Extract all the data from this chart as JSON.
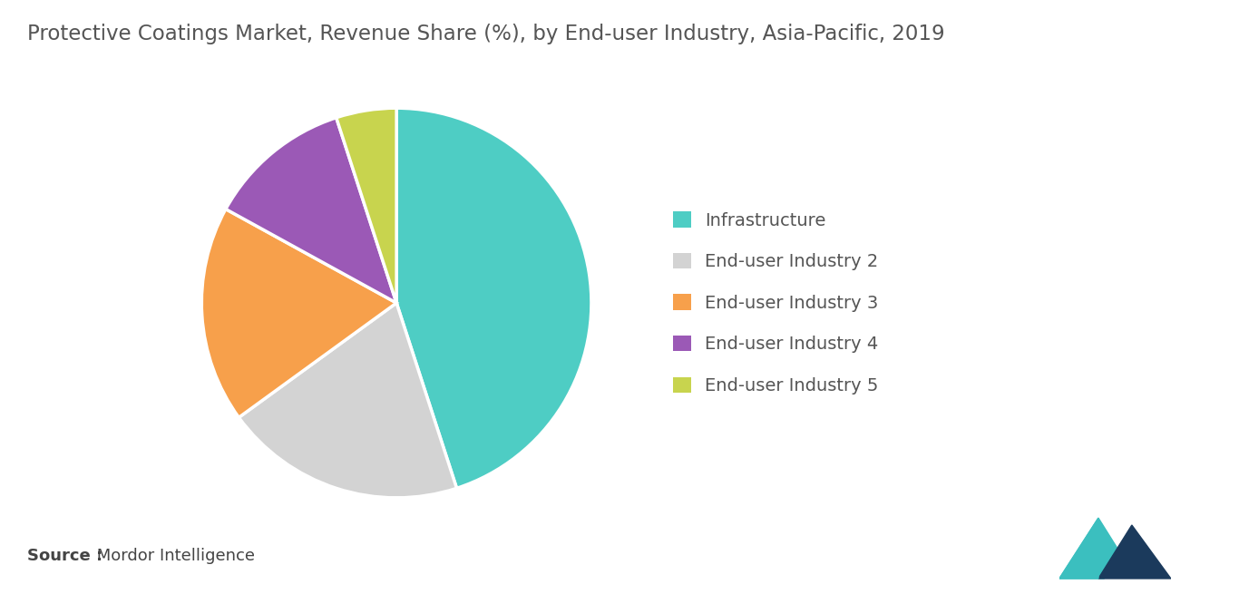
{
  "title": "Protective Coatings Market, Revenue Share (%), by End-user Industry, Asia-Pacific, 2019",
  "title_color": "#555555",
  "title_fontsize": 16.5,
  "labels": [
    "Infrastructure",
    "End-user Industry 2",
    "End-user Industry 3",
    "End-user Industry 4",
    "End-user Industry 5"
  ],
  "sizes": [
    45,
    20,
    18,
    12,
    5
  ],
  "colors": [
    "#4ECDC4",
    "#D3D3D3",
    "#F7A04B",
    "#9B59B6",
    "#C8D44E"
  ],
  "background_color": "#FFFFFF",
  "legend_fontsize": 14,
  "legend_text_color": "#555555",
  "source_bold": "Source :",
  "source_rest": " Mordor Intelligence",
  "source_fontsize": 13,
  "startangle": 90,
  "logo_teal": "#3BBFBF",
  "logo_navy": "#1B3A5C"
}
